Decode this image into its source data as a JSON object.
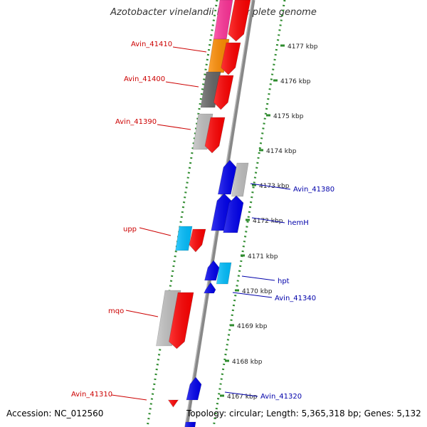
{
  "title": "Azotobacter vinelandii DJ, complete genome",
  "footer": {
    "accession_label": "Accession:",
    "accession": "NC_012560",
    "topology_label": "Topology:",
    "topology": "circular",
    "length_label": "Length:",
    "length": "5,365,318 bp",
    "genes_label": "Genes:",
    "genes": "5,132"
  },
  "colors": {
    "forward_gene": "#ff0000",
    "reverse_gene": "#0000ee",
    "gc_grey": "#c0c0c0",
    "dark_grey": "#666666",
    "orange": "#ff8c00",
    "pink": "#ff3399",
    "cyan": "#00bfff",
    "tick_green": "#2e8b2e",
    "backbone": "#888888",
    "label_red": "#cc0000",
    "label_blue": "#0000aa"
  },
  "scale_ticks": [
    "4177 kbp",
    "4176 kbp",
    "4175 kbp",
    "4174 kbp",
    "4173 kbp",
    "4172 kbp",
    "4171 kbp",
    "4170 kbp",
    "4169 kbp",
    "4168 kbp",
    "4167 kbp"
  ],
  "gene_labels_left": [
    "Avin_41410",
    "Avin_41400",
    "Avin_41390",
    "upp",
    "mqo",
    "Avin_41310"
  ],
  "gene_labels_right": [
    "Avin_41380",
    "hemH",
    "hpt",
    "Avin_41340",
    "Avin_41320"
  ]
}
